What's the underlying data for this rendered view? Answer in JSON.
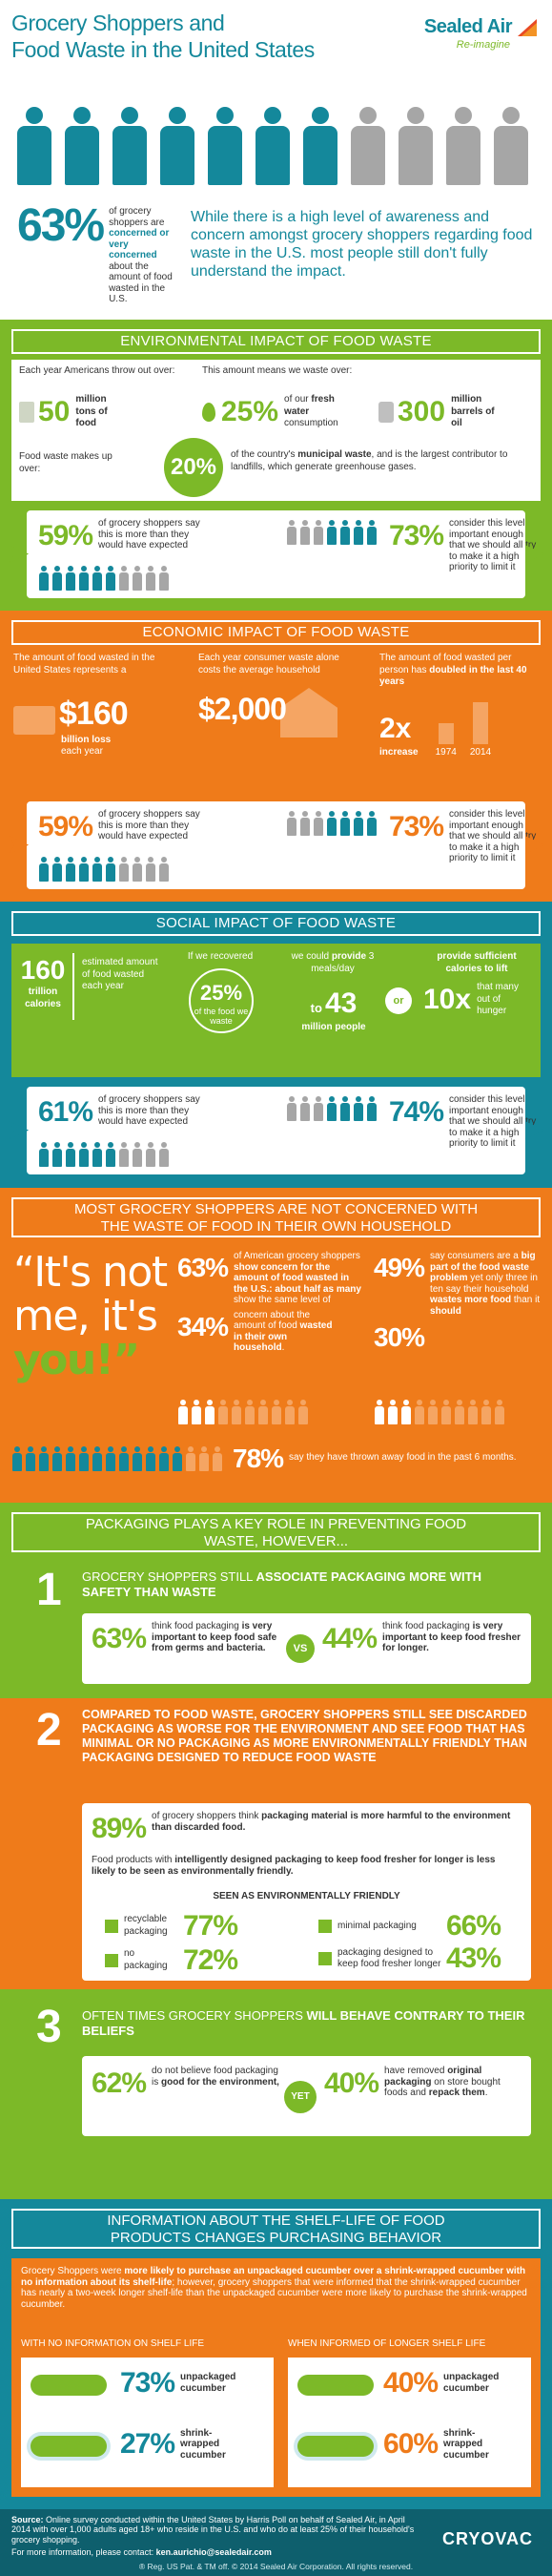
{
  "header": {
    "title_line1": "Grocery Shoppers and",
    "title_line2": "Food Waste in the United States",
    "logo_main": "Sealed Air",
    "logo_sub": "Re-imagine"
  },
  "intro": {
    "pct": "63%",
    "text_a": "of grocery shoppers are ",
    "text_b": "concerned or very concerned",
    "text_c": " about the amount of food wasted in the U.S.",
    "statement": "While there is a high level of awareness and concern amongst grocery shoppers regarding food waste in the U.S. most people still don't fully understand the impact."
  },
  "env": {
    "title": "ENVIRONMENTAL IMPACT OF FOOD WASTE",
    "each_year": "Each year Americans throw out over:",
    "means": "This amount means we waste over:",
    "tons_num": "50",
    "tons_label": "million tons of food",
    "water_num": "25%",
    "water_label_a": "of our ",
    "water_label_b": "fresh water",
    "water_label_c": " consumption",
    "oil_num": "300",
    "oil_label": "million barrels of oil",
    "waste_label": "Food waste makes up over:",
    "waste_pct": "20%",
    "waste_text_a": "of the country's ",
    "waste_text_b": "municipal waste",
    "waste_text_c": ", and is the largest contributor to landfills, which generate greenhouse gases.",
    "stat1_pct": "59%",
    "stat1_text": "of grocery shoppers say this is more than they would have expected",
    "stat2_pct": "73%",
    "stat2_text": "consider this level important enough that we should all try to make it a high priority to limit it"
  },
  "econ": {
    "title": "ECONOMIC IMPACT OF FOOD WASTE",
    "col1_text": "The amount of food wasted in the United States represents a",
    "col1_num": "$160",
    "col1_label_a": "billion loss",
    "col1_label_b": "each year",
    "col2_text": "Each year consumer waste alone costs the average household",
    "col2_num": "$2,000",
    "col3_text_a": "The amount of food wasted per person has ",
    "col3_text_b": "doubled in the last 40 years",
    "col3_num": "2x",
    "col3_label": "increase",
    "year1": "1974",
    "year2": "2014",
    "stat1_pct": "59%",
    "stat1_text": "of grocery shoppers say this is more than they would have expected",
    "stat2_pct": "73%",
    "stat2_text": "consider this level important enough that we should all try to make it a high priority to limit it"
  },
  "social": {
    "title": "SOCIAL IMPACT OF FOOD WASTE",
    "cal_num": "160",
    "cal_unit_a": "trillion",
    "cal_unit_b": "calories",
    "cal_text": "estimated amount of food wasted each year",
    "recover_text": "If we recovered",
    "recover_pct": "25%",
    "recover_sub": "of the food we waste",
    "provide_a": "we could ",
    "provide_b": "provide",
    "provide_c": " 3 meals/day",
    "to": "to",
    "people_num": "43",
    "people_label": "million people",
    "or": "or",
    "calories_text": "provide sufficient calories to lift",
    "ten_x": "10x",
    "ten_x_label": "that many out of hunger",
    "stat1_pct": "61%",
    "stat1_text": "of grocery shoppers say this is more than they would have expected",
    "stat2_pct": "74%",
    "stat2_text": "consider this level important enough that we should all try to make it a high priority to limit it"
  },
  "household": {
    "title_line1": "MOST GROCERY SHOPPERS ARE NOT CONCERNED WITH",
    "title_line2": "THE WASTE OF FOOD IN THEIR OWN HOUSEHOLD",
    "quote_a": "“It's not",
    "quote_b": "me, it's",
    "quote_c": "you!”",
    "s1_pct": "63%",
    "s1_text_a": "of American grocery shoppers ",
    "s1_text_b": "show concern for the amount of food wasted in the U.S.: about half as many",
    "s1_text_c": " show the same level of",
    "s2_pct": "34%",
    "s2_text_a": "concern about the amount of food ",
    "s2_text_b": "wasted in their own household",
    "s2_text_c": ".",
    "s3_pct": "49%",
    "s3_text_a": "say consumers are a ",
    "s3_text_b": "big part of the food waste problem",
    "s3_text_c": " yet only three in ten say their household ",
    "s3_text_d": "wastes more food",
    "s3_text_e": " than it ",
    "s3_text_f": "should",
    "s4_pct": "30%",
    "s5_pct": "78%",
    "s5_text": "say they have thrown away food in the past 6 months."
  },
  "packaging": {
    "title_line1": "PACKAGING PLAYS A KEY ROLE IN PREVENTING FOOD",
    "title_line2": "WASTE, HOWEVER...",
    "n1": "1",
    "p1_a": "GROCERY SHOPPERS STILL ",
    "p1_b": "ASSOCIATE PACKAGING MORE WITH SAFETY THAN WASTE",
    "p1_pct1": "63%",
    "p1_text1_a": "think food packaging ",
    "p1_text1_b": "is very important to keep food safe from germs and bacteria.",
    "vs": "VS",
    "p1_pct2": "44%",
    "p1_text2_a": "think food packaging ",
    "p1_text2_b": "is very important to keep food fresher for longer.",
    "n2": "2",
    "p2_title": "COMPARED TO FOOD WASTE, GROCERY SHOPPERS STILL SEE DISCARDED PACKAGING AS WORSE FOR THE ENVIRONMENT AND SEE FOOD THAT HAS MINIMAL OR NO PACKAGING AS MORE ENVIRONMENTALLY FRIENDLY THAN PACKAGING DESIGNED TO REDUCE FOOD WASTE",
    "p2_pct": "89%",
    "p2_text_a": "of grocery shoppers think ",
    "p2_text_b": "packaging material is more harmful to the environment than discarded food.",
    "p2_smart_a": "Food products with ",
    "p2_smart_b": "intelligently designed packaging to keep food fresher for longer is less likely to be seen as environmentally friendly.",
    "seen_as": "SEEN AS ENVIRONMENTALLY FRIENDLY",
    "f1_label": "recyclable packaging",
    "f1_pct": "77%",
    "f2_label": "minimal packaging",
    "f2_pct": "66%",
    "f3_label": "no packaging",
    "f3_pct": "72%",
    "f4_label": "packaging designed to keep food fresher longer",
    "f4_pct": "43%",
    "n3": "3",
    "p3_a": "OFTEN TIMES GROCERY SHOPPERS ",
    "p3_b": "WILL BEHAVE CONTRARY TO THEIR BELIEFS",
    "p3_pct1": "62%",
    "p3_text1_a": "do not believe food packaging is ",
    "p3_text1_b": "good for the environment,",
    "yet": "YET",
    "p3_pct2": "40%",
    "p3_text2_a": "have removed ",
    "p3_text2_b": "original packaging",
    "p3_text2_c": " on store bought foods and ",
    "p3_text2_d": "repack them",
    "p3_text2_e": "."
  },
  "shelf": {
    "title_line1": "INFORMATION ABOUT THE SHELF-LIFE OF FOOD",
    "title_line2": "PRODUCTS CHANGES PURCHASING BEHAVIOR",
    "body_a": "Grocery Shoppers were ",
    "body_b": "more likely to purchase an unpackaged cucumber over a shrink-wrapped cucumber with no information about its shelf-life",
    "body_c": "; however, grocery shoppers that were informed that the shrink-wrapped cucumber has nearly a two-week longer shelf-life than the unpackaged cucumber were more likely to purchase the shrink-wrapped cucumber.",
    "left_head": "WITH NO INFORMATION ON SHELF LIFE",
    "right_head": "WHEN INFORMED OF LONGER SHELF LIFE",
    "l_pct1": "73%",
    "l_lab1": "unpackaged cucumber",
    "l_pct2": "27%",
    "l_lab2": "shrink-wrapped cucumber",
    "r_pct1": "40%",
    "r_lab1": "unpackaged cucumber",
    "r_pct2": "60%",
    "r_lab2": "shrink-wrapped cucumber"
  },
  "footer": {
    "source_label": "Source:",
    "source_text": " Online survey conducted within the United States by Harris Poll on behalf of Sealed Air, in April 2014 with over 1,000 adults aged 18+ who reside in the U.S. and who do at least 25% of their household's grocery shopping.",
    "contact_a": "For more information, please contact: ",
    "contact_b": "ken.aurichio@sealedair.com",
    "brand": "CRYOVAC",
    "copyright": "® Reg. US Pat. & TM off. © 2014 Sealed Air Corporation. All rights reserved."
  },
  "colors": {
    "teal": "#14889b",
    "green": "#7cb928",
    "orange": "#ef7b1a",
    "gray": "#a6a6a6",
    "dark_teal": "#0e5f6d"
  }
}
